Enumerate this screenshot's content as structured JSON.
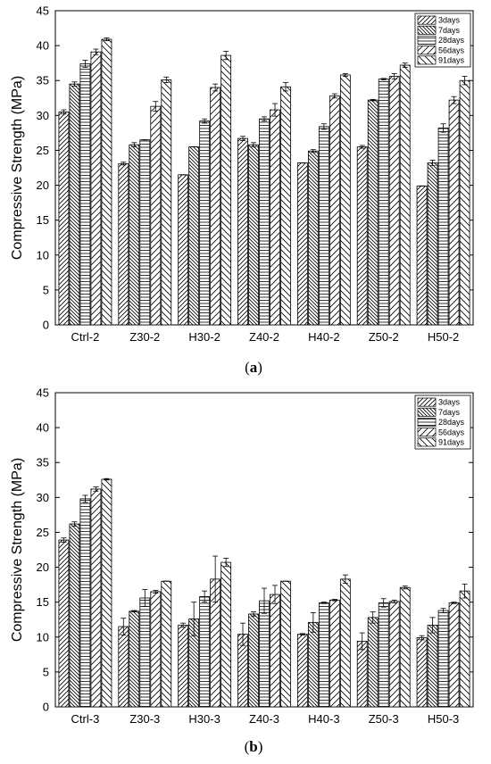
{
  "chart_data": [
    {
      "type": "bar",
      "panel_label": "a",
      "ylabel": "Compressive Strength (MPa)",
      "ylim": [
        0,
        45
      ],
      "yticks": [
        0,
        5,
        10,
        15,
        20,
        25,
        30,
        35,
        40,
        45
      ],
      "categories": [
        "Ctrl-2",
        "Z30-2",
        "H30-2",
        "Z40-2",
        "H40-2",
        "Z50-2",
        "H50-2"
      ],
      "legend_position": "top-right",
      "series": [
        {
          "name": "3days",
          "values": [
            30.5,
            23.1,
            21.5,
            26.7,
            23.2,
            25.5,
            19.9
          ],
          "errors": [
            0.3,
            0.2,
            0.0,
            0.3,
            0.0,
            0.2,
            0.0
          ]
        },
        {
          "name": "7days",
          "values": [
            34.5,
            25.8,
            25.5,
            25.8,
            24.9,
            32.2,
            23.2
          ],
          "errors": [
            0.3,
            0.3,
            0.0,
            0.3,
            0.2,
            0.1,
            0.4
          ]
        },
        {
          "name": "28days",
          "values": [
            37.4,
            26.5,
            29.2,
            29.5,
            28.4,
            35.2,
            28.2
          ],
          "errors": [
            0.5,
            0.0,
            0.3,
            0.3,
            0.4,
            0.1,
            0.6
          ]
        },
        {
          "name": "56days",
          "values": [
            39.1,
            31.3,
            34.0,
            30.8,
            32.8,
            35.6,
            32.2
          ],
          "errors": [
            0.4,
            0.7,
            0.5,
            0.9,
            0.3,
            0.4,
            0.5
          ]
        },
        {
          "name": "91days",
          "values": [
            40.9,
            35.1,
            38.6,
            34.1,
            35.8,
            37.2,
            35.0
          ],
          "errors": [
            0.2,
            0.4,
            0.6,
            0.6,
            0.2,
            0.3,
            0.6
          ]
        }
      ]
    },
    {
      "type": "bar",
      "panel_label": "b",
      "ylabel": "Compressive Strength (MPa)",
      "ylim": [
        0,
        45
      ],
      "yticks": [
        0,
        5,
        10,
        15,
        20,
        25,
        30,
        35,
        40,
        45
      ],
      "categories": [
        "Ctrl-3",
        "Z30-3",
        "H30-3",
        "Z40-3",
        "H40-3",
        "Z50-3",
        "H50-3"
      ],
      "legend_position": "top-right",
      "series": [
        {
          "name": "3days",
          "values": [
            23.9,
            11.5,
            11.7,
            10.4,
            10.4,
            9.4,
            9.9
          ],
          "errors": [
            0.3,
            1.2,
            0.3,
            1.6,
            0.1,
            1.2,
            0.3
          ]
        },
        {
          "name": "7days",
          "values": [
            26.2,
            13.7,
            12.6,
            13.3,
            12.1,
            12.8,
            11.7
          ],
          "errors": [
            0.3,
            0.1,
            2.4,
            0.3,
            1.4,
            0.8,
            1.1
          ]
        },
        {
          "name": "28days",
          "values": [
            29.8,
            15.6,
            15.8,
            15.2,
            14.9,
            14.9,
            13.8
          ],
          "errors": [
            0.5,
            1.2,
            0.8,
            1.8,
            0.1,
            0.6,
            0.3
          ]
        },
        {
          "name": "56days",
          "values": [
            31.2,
            16.5,
            18.3,
            16.1,
            15.3,
            15.1,
            14.9
          ],
          "errors": [
            0.3,
            0.2,
            3.3,
            1.3,
            0.1,
            0.2,
            0.1
          ]
        },
        {
          "name": "91days",
          "values": [
            32.6,
            18.0,
            20.7,
            18.0,
            18.3,
            17.1,
            16.6
          ],
          "errors": [
            0.1,
            0.0,
            0.6,
            0.0,
            0.6,
            0.2,
            1.0
          ]
        }
      ]
    }
  ]
}
